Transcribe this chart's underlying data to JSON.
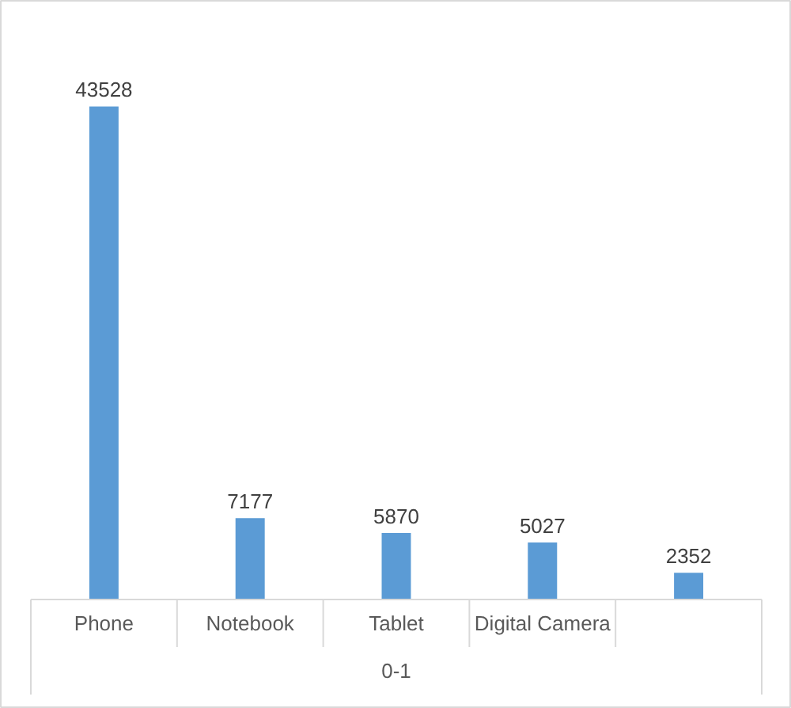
{
  "chart_data": {
    "type": "bar",
    "categories": [
      "Phone",
      "Notebook",
      "Tablet",
      "Digital Camera",
      null
    ],
    "values": [
      43528,
      7177,
      5870,
      5027,
      2352
    ],
    "color": "#5b9bd5",
    "xlabel": "0-1",
    "data_labels": true
  }
}
